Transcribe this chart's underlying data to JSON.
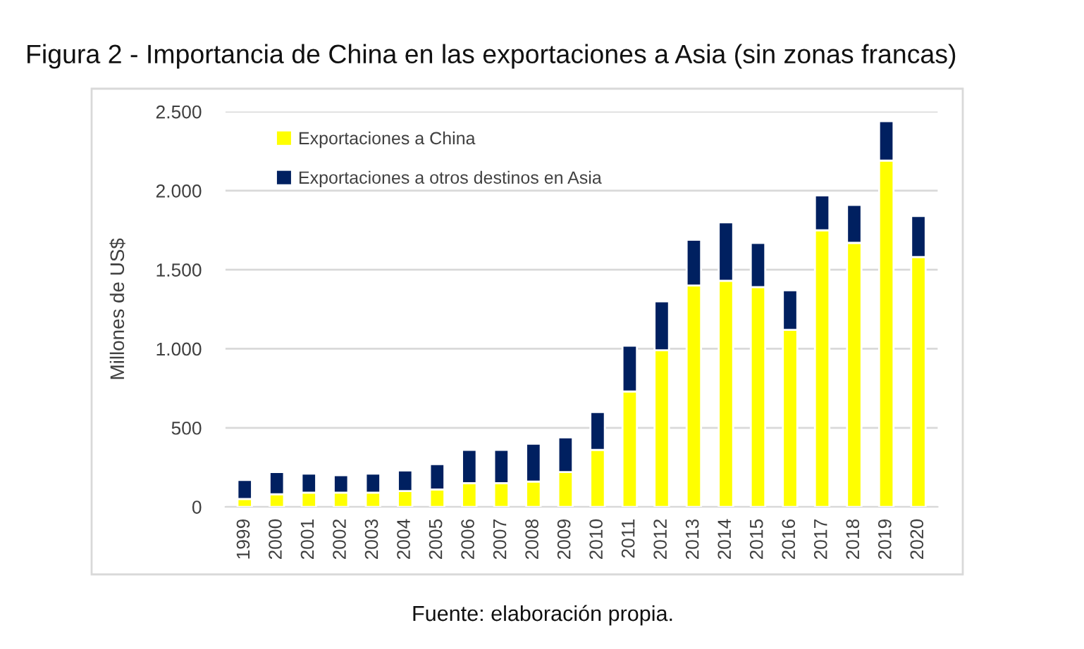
{
  "chart_data": {
    "type": "bar",
    "title": "Figura 2 - Importancia de China en las exportaciones a Asia (sin zonas francas)",
    "ylabel": "Millones de US$",
    "annotations": [
      "Fuente: elaboración propia."
    ],
    "categories": [
      "1999",
      "2000",
      "2001",
      "2002",
      "2003",
      "2004",
      "2005",
      "2006",
      "2007",
      "2008",
      "2009",
      "2010",
      "2011",
      "2012",
      "2013",
      "2014",
      "2015",
      "2016",
      "2017",
      "2018",
      "2019",
      "2020"
    ],
    "series": [
      {
        "name": "Exportaciones a China",
        "color": "#ffff00",
        "values": [
          50,
          80,
          90,
          90,
          90,
          100,
          110,
          150,
          150,
          160,
          220,
          360,
          730,
          990,
          1400,
          1430,
          1390,
          1120,
          1750,
          1670,
          2190,
          1580
        ]
      },
      {
        "name": "Exportaciones a otros destinos en Asia",
        "color": "#002060",
        "values": [
          120,
          140,
          120,
          110,
          120,
          130,
          160,
          210,
          210,
          240,
          220,
          240,
          290,
          310,
          290,
          370,
          280,
          250,
          220,
          240,
          250,
          260
        ]
      }
    ],
    "stacked": true,
    "ylim": [
      0,
      2500
    ],
    "yticks": [
      0,
      {
        "value": 500,
        "label": "500"
      },
      {
        "value": 1000,
        "label": "1.000"
      },
      {
        "value": 1500,
        "label": "1.500"
      },
      {
        "value": 2000,
        "label": "2.000"
      },
      {
        "value": 2500,
        "label": "2.500"
      }
    ],
    "grid": "y",
    "legend": "top left"
  }
}
